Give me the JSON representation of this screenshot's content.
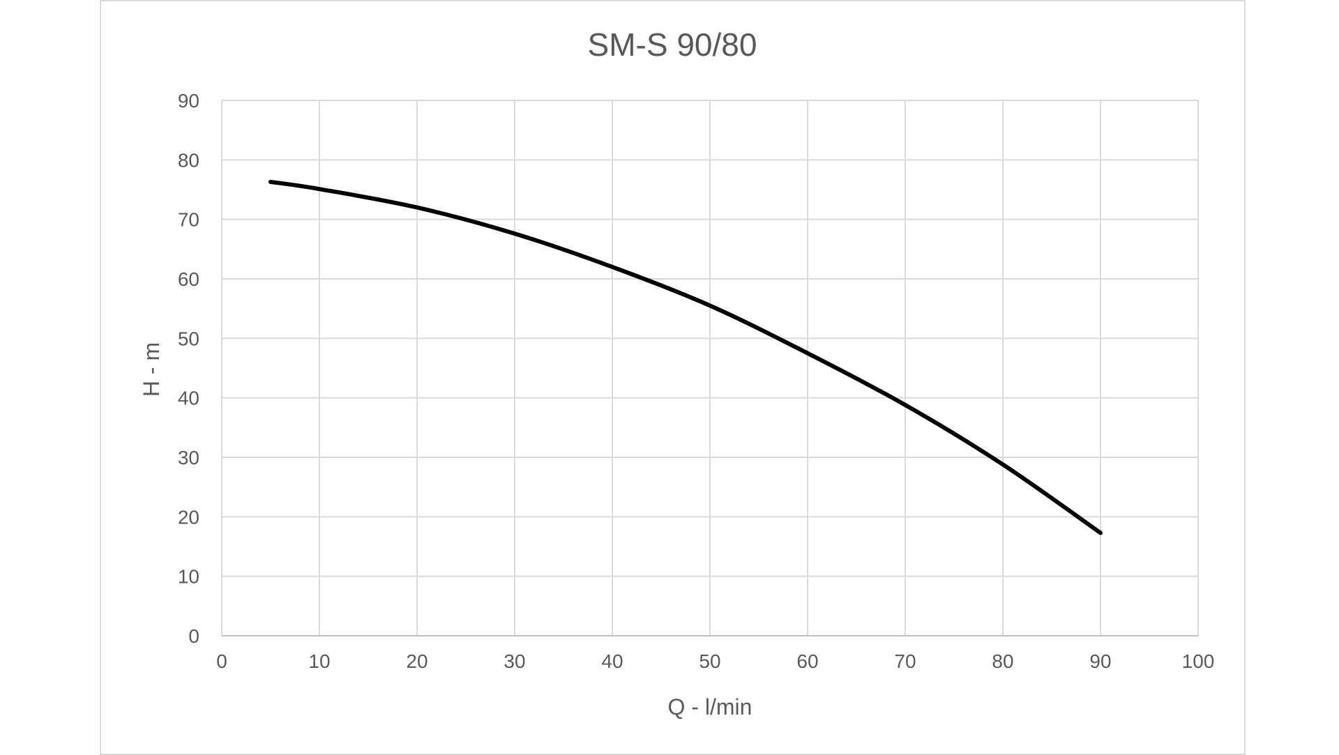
{
  "chart_data": {
    "type": "line",
    "title": "SM-S 90/80",
    "xlabel": "Q - l/min",
    "ylabel": "H - m",
    "xlim": [
      0,
      100
    ],
    "ylim": [
      0,
      90
    ],
    "x_ticks": [
      0,
      10,
      20,
      30,
      40,
      50,
      60,
      70,
      80,
      90,
      100
    ],
    "y_ticks": [
      0,
      10,
      20,
      30,
      40,
      50,
      60,
      70,
      80,
      90
    ],
    "grid": true,
    "series": [
      {
        "x": [
          5,
          10,
          20,
          30,
          40,
          50,
          60,
          70,
          80,
          90
        ],
        "y": [
          76.3,
          75.1,
          72.0,
          67.6,
          62.0,
          55.5,
          47.5,
          38.8,
          28.8,
          17.3
        ],
        "color": "#000000"
      }
    ]
  }
}
